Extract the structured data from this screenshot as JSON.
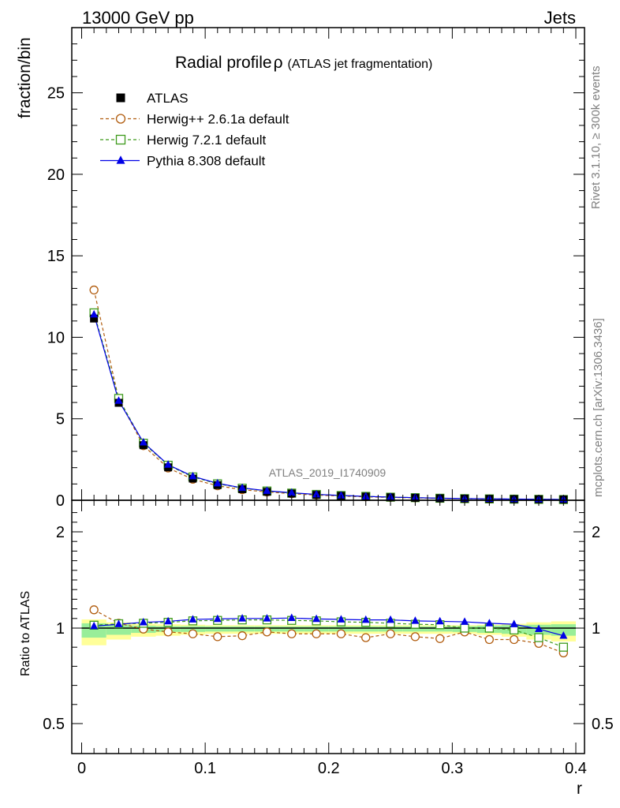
{
  "header": {
    "left": "13000 GeV pp",
    "right": "Jets"
  },
  "side_labels": {
    "rivet": "Rivet 3.1.10, ≥ 300k events",
    "mcplots": "mcplots.cern.ch [arXiv:1306.3436]"
  },
  "chart_data": [
    {
      "type": "line",
      "title": "Radial profile",
      "title_symbol": "ρ",
      "subtitle": "(ATLAS jet fragmentation)",
      "watermark": "ATLAS_2019_I1740909",
      "ylabel": "fraction/bin",
      "ylim": [
        0,
        29
      ],
      "yticks": [
        0,
        5,
        10,
        15,
        20,
        25
      ],
      "xlim": [
        -0.002,
        0.4
      ],
      "x": [
        0.01,
        0.03,
        0.05,
        0.07,
        0.09,
        0.11,
        0.13,
        0.15,
        0.17,
        0.19,
        0.21,
        0.23,
        0.25,
        0.27,
        0.29,
        0.31,
        0.33,
        0.35,
        0.37,
        0.39
      ],
      "legend_position": "top-left",
      "series": [
        {
          "name": "ATLAS",
          "color": "#000000",
          "marker": "filled-square",
          "line": "none",
          "values": [
            11.15,
            5.98,
            3.38,
            2.02,
            1.33,
            0.93,
            0.68,
            0.52,
            0.41,
            0.33,
            0.27,
            0.22,
            0.18,
            0.15,
            0.12,
            0.1,
            0.085,
            0.07,
            0.06,
            0.05
          ]
        },
        {
          "name": "Herwig++ 2.6.1a default",
          "color": "#b15c0e",
          "marker": "open-circle",
          "line": "dashed",
          "values": [
            12.9,
            6.2,
            3.35,
            1.98,
            1.29,
            0.89,
            0.65,
            0.51,
            0.4,
            0.32,
            0.26,
            0.21,
            0.175,
            0.145,
            0.115,
            0.097,
            0.08,
            0.066,
            0.055,
            0.043
          ]
        },
        {
          "name": "Herwig 7.2.1 default",
          "color": "#3d9a1b",
          "marker": "open-square",
          "line": "dashed",
          "values": [
            11.5,
            6.25,
            3.5,
            2.15,
            1.43,
            1.01,
            0.74,
            0.57,
            0.44,
            0.36,
            0.29,
            0.24,
            0.19,
            0.16,
            0.125,
            0.1,
            0.085,
            0.07,
            0.057,
            0.045
          ]
        },
        {
          "name": "Pythia 8.308 default",
          "color": "#0000e6",
          "marker": "filled-triangle",
          "line": "solid",
          "values": [
            11.4,
            6.1,
            3.55,
            2.18,
            1.47,
            1.04,
            0.76,
            0.58,
            0.46,
            0.36,
            0.295,
            0.24,
            0.195,
            0.16,
            0.128,
            0.104,
            0.087,
            0.072,
            0.06,
            0.048
          ]
        }
      ]
    },
    {
      "type": "line",
      "ylabel": "Ratio to ATLAS",
      "xlabel": "r",
      "ylim": [
        0.4,
        2.25
      ],
      "yticks": [
        0.5,
        1,
        2
      ],
      "ytick_labels": [
        "0.5",
        "1",
        "2"
      ],
      "xticks": [
        0,
        0.1,
        0.2,
        0.3,
        0.4
      ],
      "xtick_labels": [
        "0",
        "0.1",
        "0.2",
        "0.3",
        "0.4"
      ],
      "x": [
        0.01,
        0.03,
        0.05,
        0.07,
        0.09,
        0.11,
        0.13,
        0.15,
        0.17,
        0.19,
        0.21,
        0.23,
        0.25,
        0.27,
        0.29,
        0.31,
        0.33,
        0.35,
        0.37,
        0.39
      ],
      "bands": {
        "yellow_color": "#ffff99",
        "green_color": "#99ee99",
        "yellow_half_width": [
          0.09,
          0.06,
          0.045,
          0.04,
          0.035,
          0.03,
          0.03,
          0.03,
          0.03,
          0.03,
          0.03,
          0.03,
          0.03,
          0.03,
          0.03,
          0.03,
          0.035,
          0.045,
          0.06,
          0.07
        ],
        "green_half_width": [
          0.05,
          0.035,
          0.025,
          0.02,
          0.02,
          0.018,
          0.018,
          0.018,
          0.018,
          0.018,
          0.018,
          0.018,
          0.018,
          0.018,
          0.018,
          0.02,
          0.025,
          0.03,
          0.035,
          0.04
        ]
      },
      "series": [
        {
          "name": "Herwig++ 2.6.1a default",
          "color": "#b15c0e",
          "marker": "open-circle",
          "line": "dashed",
          "values": [
            1.19,
            1.05,
            0.995,
            0.98,
            0.97,
            0.955,
            0.96,
            0.98,
            0.97,
            0.97,
            0.97,
            0.95,
            0.97,
            0.955,
            0.945,
            0.98,
            0.94,
            0.94,
            0.92,
            0.87
          ]
        },
        {
          "name": "Herwig 7.2.1 default",
          "color": "#3d9a1b",
          "marker": "open-square",
          "line": "dashed",
          "values": [
            1.03,
            1.045,
            1.05,
            1.06,
            1.075,
            1.08,
            1.085,
            1.085,
            1.08,
            1.075,
            1.065,
            1.06,
            1.05,
            1.04,
            1.035,
            1.0,
            1.0,
            0.99,
            0.95,
            0.9
          ]
        },
        {
          "name": "Pythia 8.308 default",
          "color": "#0000e6",
          "marker": "filled-triangle",
          "line": "solid",
          "values": [
            1.02,
            1.04,
            1.06,
            1.07,
            1.09,
            1.095,
            1.1,
            1.1,
            1.105,
            1.095,
            1.09,
            1.085,
            1.085,
            1.075,
            1.07,
            1.065,
            1.05,
            1.04,
            0.995,
            0.96
          ]
        }
      ]
    }
  ]
}
